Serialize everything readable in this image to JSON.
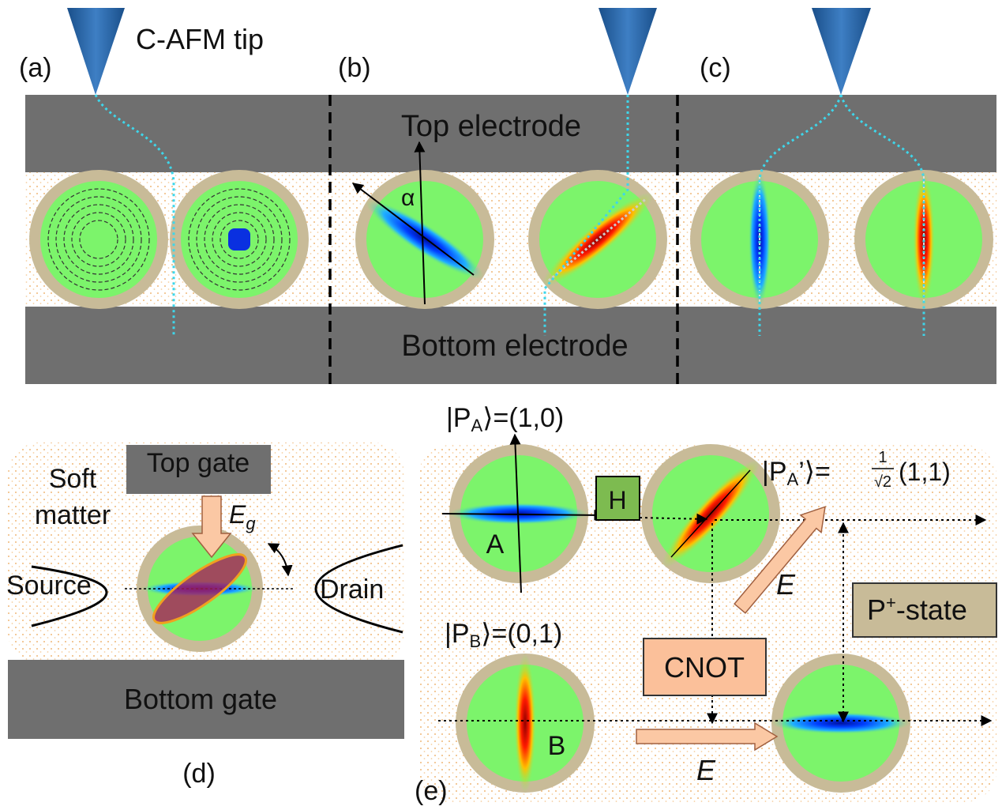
{
  "panel_a": {
    "label": "(a)",
    "tip_label": "C-AFM tip"
  },
  "panel_b": {
    "label": "(b)",
    "top_electrode": "Top electrode",
    "bottom_electrode": "Bottom electrode",
    "angle": "α"
  },
  "panel_c": {
    "label": "(c)"
  },
  "panel_d": {
    "label": "(d)",
    "top_gate": "Top gate",
    "soft_matter": [
      "Soft",
      "matter"
    ],
    "field": {
      "symbol": "E",
      "sub": "g"
    },
    "source": "Source",
    "drain": "Drain",
    "bottom_gate": "Bottom gate"
  },
  "panel_e": {
    "label": "(e)",
    "state_a": {
      "ket": "|P",
      "sub": "A",
      "rest": "⟩=(1,0)"
    },
    "state_a_prime": {
      "ket": "|P",
      "sub": "A",
      "prime": "’⟩=",
      "num": "1",
      "den": "√2",
      "rest": "(1,1)"
    },
    "state_b": {
      "ket": "|P",
      "sub": "B",
      "rest": "⟩=(0,1)"
    },
    "gate_h": "H",
    "qubit_a": "A",
    "qubit_b": "B",
    "field_1": "E",
    "field_2": "E",
    "p_plus": {
      "p": "P",
      "sup": "+",
      "rest": "-state"
    },
    "cnot": "CNOT"
  }
}
